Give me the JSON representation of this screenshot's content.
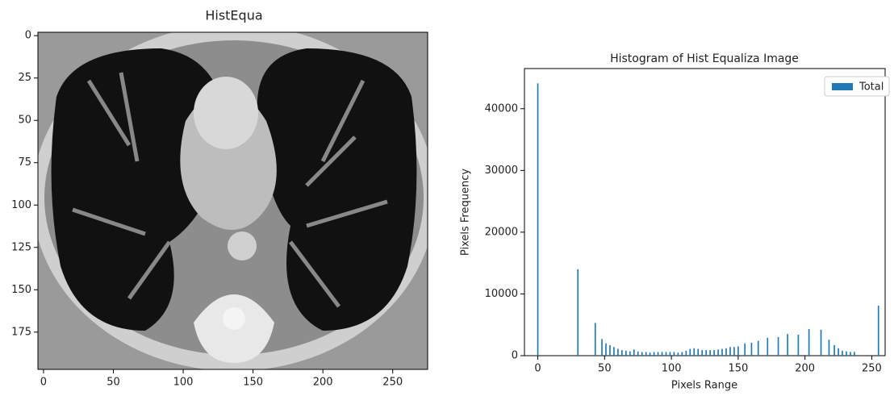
{
  "chart_data": [
    {
      "type": "image",
      "title": "HistEqua",
      "xlim": [
        -4,
        275
      ],
      "xticks": [
        0,
        50,
        100,
        150,
        200,
        250
      ],
      "ylim": [
        197,
        -2
      ],
      "yticks": [
        0,
        25,
        50,
        75,
        100,
        125,
        150,
        175
      ]
    },
    {
      "type": "bar",
      "title": "Histogram of Hist Equaliza Image",
      "xlabel": "Pixels Range",
      "ylabel": "Pixels Frequency",
      "x": [
        0,
        30,
        43,
        48,
        51,
        54,
        57,
        60,
        63,
        66,
        69,
        72,
        75,
        78,
        81,
        84,
        87,
        90,
        93,
        96,
        99,
        102,
        105,
        108,
        111,
        114,
        117,
        120,
        123,
        126,
        129,
        132,
        135,
        138,
        141,
        144,
        147,
        150,
        155,
        160,
        165,
        172,
        180,
        187,
        195,
        203,
        212,
        218,
        222,
        225,
        228,
        231,
        234,
        237,
        255
      ],
      "series": [
        {
          "name": "Total",
          "color": "#1f77b4",
          "values": [
            44100,
            14000,
            5300,
            2700,
            2000,
            1700,
            1400,
            1100,
            900,
            800,
            700,
            1000,
            700,
            600,
            600,
            500,
            600,
            600,
            600,
            600,
            600,
            600,
            500,
            600,
            800,
            1100,
            1200,
            1100,
            900,
            900,
            900,
            900,
            1000,
            1100,
            1200,
            1400,
            1400,
            1500,
            2000,
            2100,
            2400,
            2900,
            3000,
            3500,
            3400,
            4300,
            4200,
            2600,
            1700,
            1200,
            800,
            700,
            600,
            600,
            8100
          ]
        }
      ],
      "xlim": [
        -10,
        260
      ],
      "xticks": [
        0,
        50,
        100,
        150,
        200,
        250
      ],
      "ylim": [
        0,
        46500
      ],
      "yticks": [
        0,
        10000,
        20000,
        30000,
        40000
      ],
      "legend": "upper right"
    }
  ]
}
